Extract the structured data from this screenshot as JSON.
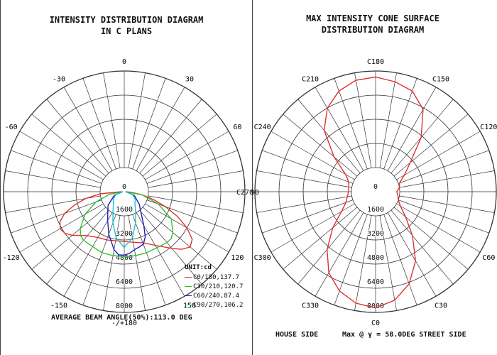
{
  "left_title": "INTENSITY DISTRIBUTION DIAGRAM\nIN C PLANS",
  "right_title": "MAX INTENSITY CONE SURFACE\nDISTRIBUTION DIAGRAM",
  "left_footer": "AVERAGE BEAM ANGLE(50%):113.0 DEG",
  "right_footer_left": "HOUSE SIDE",
  "right_footer_right": "Max @ γ = 58.0DEG STREET SIDE",
  "unit_label": "UNIT:cd",
  "chart_data": [
    {
      "type": "polar",
      "title": "INTENSITY DISTRIBUTION DIAGRAM IN C PLANS",
      "angle_labels": [
        "-/+180",
        "150",
        "120",
        "90",
        "60",
        "30",
        "0",
        "-30",
        "-60",
        "-90",
        "-120",
        "-150"
      ],
      "radial_ticks": [
        "0",
        "1600",
        "3200",
        "4800",
        "6400",
        "8000"
      ],
      "rmax": 8000,
      "unit": "UNIT:cd",
      "legend_position": "bottom-right",
      "series": [
        {
          "name": "C0/180,137.7",
          "color": "#e03030",
          "points": [
            [
              -90,
              200
            ],
            [
              -85,
              1600
            ],
            [
              -80,
              2600
            ],
            [
              -75,
              3400
            ],
            [
              -70,
              4200
            ],
            [
              -65,
              4700
            ],
            [
              -60,
              4900
            ],
            [
              -55,
              4800
            ],
            [
              -50,
              4500
            ],
            [
              -45,
              4100
            ],
            [
              -40,
              3800
            ],
            [
              -30,
              3500
            ],
            [
              -20,
              3400
            ],
            [
              -10,
              3300
            ],
            [
              0,
              3300
            ],
            [
              10,
              3400
            ],
            [
              20,
              3600
            ],
            [
              30,
              4100
            ],
            [
              40,
              4900
            ],
            [
              45,
              5400
            ],
            [
              50,
              5700
            ],
            [
              55,
              5500
            ],
            [
              60,
              4800
            ],
            [
              65,
              3900
            ],
            [
              70,
              2900
            ],
            [
              75,
              2000
            ],
            [
              80,
              1200
            ],
            [
              85,
              500
            ],
            [
              90,
              100
            ]
          ]
        },
        {
          "name": "C30/210,120.7",
          "color": "#30c030",
          "points": [
            [
              -90,
              100
            ],
            [
              -80,
              1000
            ],
            [
              -70,
              2000
            ],
            [
              -60,
              3000
            ],
            [
              -50,
              3800
            ],
            [
              -45,
              4100
            ],
            [
              -40,
              4200
            ],
            [
              -30,
              4200
            ],
            [
              -20,
              4300
            ],
            [
              -10,
              4300
            ],
            [
              0,
              4300
            ],
            [
              10,
              4300
            ],
            [
              20,
              4300
            ],
            [
              30,
              4300
            ],
            [
              40,
              4400
            ],
            [
              45,
              4400
            ],
            [
              50,
              4200
            ],
            [
              60,
              3600
            ],
            [
              70,
              2400
            ],
            [
              80,
              1200
            ],
            [
              90,
              100
            ]
          ]
        },
        {
          "name": "C60/240,87.4",
          "color": "#2020c0",
          "points": [
            [
              -90,
              100
            ],
            [
              -70,
              700
            ],
            [
              -50,
              1400
            ],
            [
              -40,
              1700
            ],
            [
              -30,
              2200
            ],
            [
              -20,
              3000
            ],
            [
              -10,
              3900
            ],
            [
              -5,
              4200
            ],
            [
              0,
              4200
            ],
            [
              5,
              4100
            ],
            [
              10,
              3900
            ],
            [
              15,
              3800
            ],
            [
              20,
              3700
            ],
            [
              25,
              3300
            ],
            [
              30,
              2600
            ],
            [
              40,
              1700
            ],
            [
              50,
              1300
            ],
            [
              70,
              700
            ],
            [
              90,
              100
            ]
          ]
        },
        {
          "name": "C90/270,106.2",
          "color": "#20c0d0",
          "points": [
            [
              -90,
              100
            ],
            [
              -70,
              600
            ],
            [
              -55,
              900
            ],
            [
              -45,
              1000
            ],
            [
              -30,
              1500
            ],
            [
              -20,
              2200
            ],
            [
              -10,
              3100
            ],
            [
              0,
              3700
            ],
            [
              10,
              3100
            ],
            [
              20,
              2200
            ],
            [
              30,
              1500
            ],
            [
              45,
              1000
            ],
            [
              55,
              900
            ],
            [
              70,
              600
            ],
            [
              90,
              100
            ]
          ]
        }
      ]
    },
    {
      "type": "polar",
      "title": "MAX INTENSITY CONE SURFACE DISTRIBUTION DIAGRAM",
      "angle_labels": [
        "C0",
        "C30",
        "C60",
        "C90",
        "C120",
        "C150",
        "C180",
        "C210",
        "C240",
        "C270",
        "C300",
        "C330"
      ],
      "radial_ticks": [
        "0",
        "1600",
        "3200",
        "4800",
        "6400",
        "8000"
      ],
      "rmax": 8000,
      "series": [
        {
          "name": "Max cone surface",
          "color": "#e03030",
          "points": [
            [
              0,
              7700
            ],
            [
              10,
              7300
            ],
            [
              20,
              6500
            ],
            [
              30,
              5300
            ],
            [
              40,
              3800
            ],
            [
              50,
              2600
            ],
            [
              60,
              1900
            ],
            [
              70,
              1600
            ],
            [
              80,
              1500
            ],
            [
              90,
              1400
            ],
            [
              100,
              1600
            ],
            [
              110,
              1700
            ],
            [
              120,
              2200
            ],
            [
              130,
              3000
            ],
            [
              140,
              4700
            ],
            [
              150,
              6300
            ],
            [
              160,
              7100
            ],
            [
              170,
              7400
            ],
            [
              180,
              7600
            ],
            [
              190,
              7500
            ],
            [
              200,
              7100
            ],
            [
              210,
              6400
            ],
            [
              220,
              5300
            ],
            [
              230,
              3600
            ],
            [
              240,
              2300
            ],
            [
              250,
              1900
            ],
            [
              260,
              1800
            ],
            [
              270,
              1800
            ],
            [
              280,
              1900
            ],
            [
              290,
              2100
            ],
            [
              300,
              2600
            ],
            [
              310,
              3700
            ],
            [
              320,
              5000
            ],
            [
              330,
              6200
            ],
            [
              340,
              7000
            ],
            [
              350,
              7500
            ]
          ]
        }
      ]
    }
  ]
}
